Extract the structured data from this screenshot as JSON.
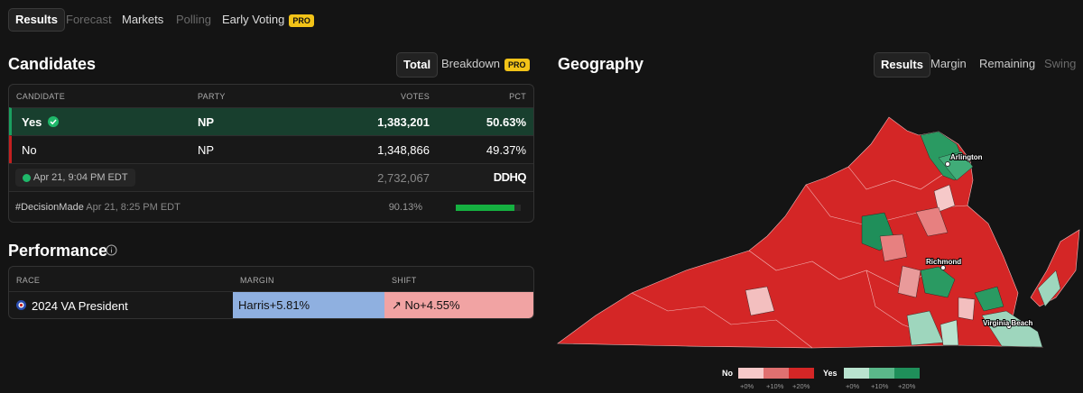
{
  "tabs": [
    "Results",
    "Forecast",
    "Markets",
    "Polling",
    "Early Voting"
  ],
  "pro_badge": "PRO",
  "candidates": {
    "title": "Candidates",
    "toggle": [
      "Total",
      "Breakdown"
    ],
    "columns": [
      "CANDIDATE",
      "PARTY",
      "VOTES",
      "PCT"
    ],
    "rows": [
      [
        "Yes",
        "NP",
        "1,383,201",
        "50.63%"
      ],
      [
        "No",
        "NP",
        "1,348,866",
        "49.37%"
      ]
    ],
    "updated": "Apr 21, 9:04 PM EDT",
    "total": "2,732,067",
    "source": "DDHQ",
    "decision": "#DecisionMade",
    "decision_time": "Apr 21, 8:25 PM EDT",
    "reporting": {
      "value": 90.13,
      "label": "90.13%"
    }
  },
  "performance": {
    "title": "Performance",
    "columns": [
      "RACE",
      "MARGIN",
      "SHIFT"
    ],
    "rows": [
      [
        "2024 VA President",
        "Harris+5.81%",
        "↗ No+4.55%"
      ]
    ]
  },
  "geography": {
    "title": "Geography",
    "tabs": [
      "Results",
      "Margin",
      "Remaining",
      "Swing"
    ],
    "labels": [
      "Arlington",
      "Richmond",
      "Virginia Beach"
    ],
    "legend": {
      "no": "No",
      "yes": "Yes",
      "ticks": [
        "+0%",
        "+10%",
        "+20%"
      ]
    }
  }
}
